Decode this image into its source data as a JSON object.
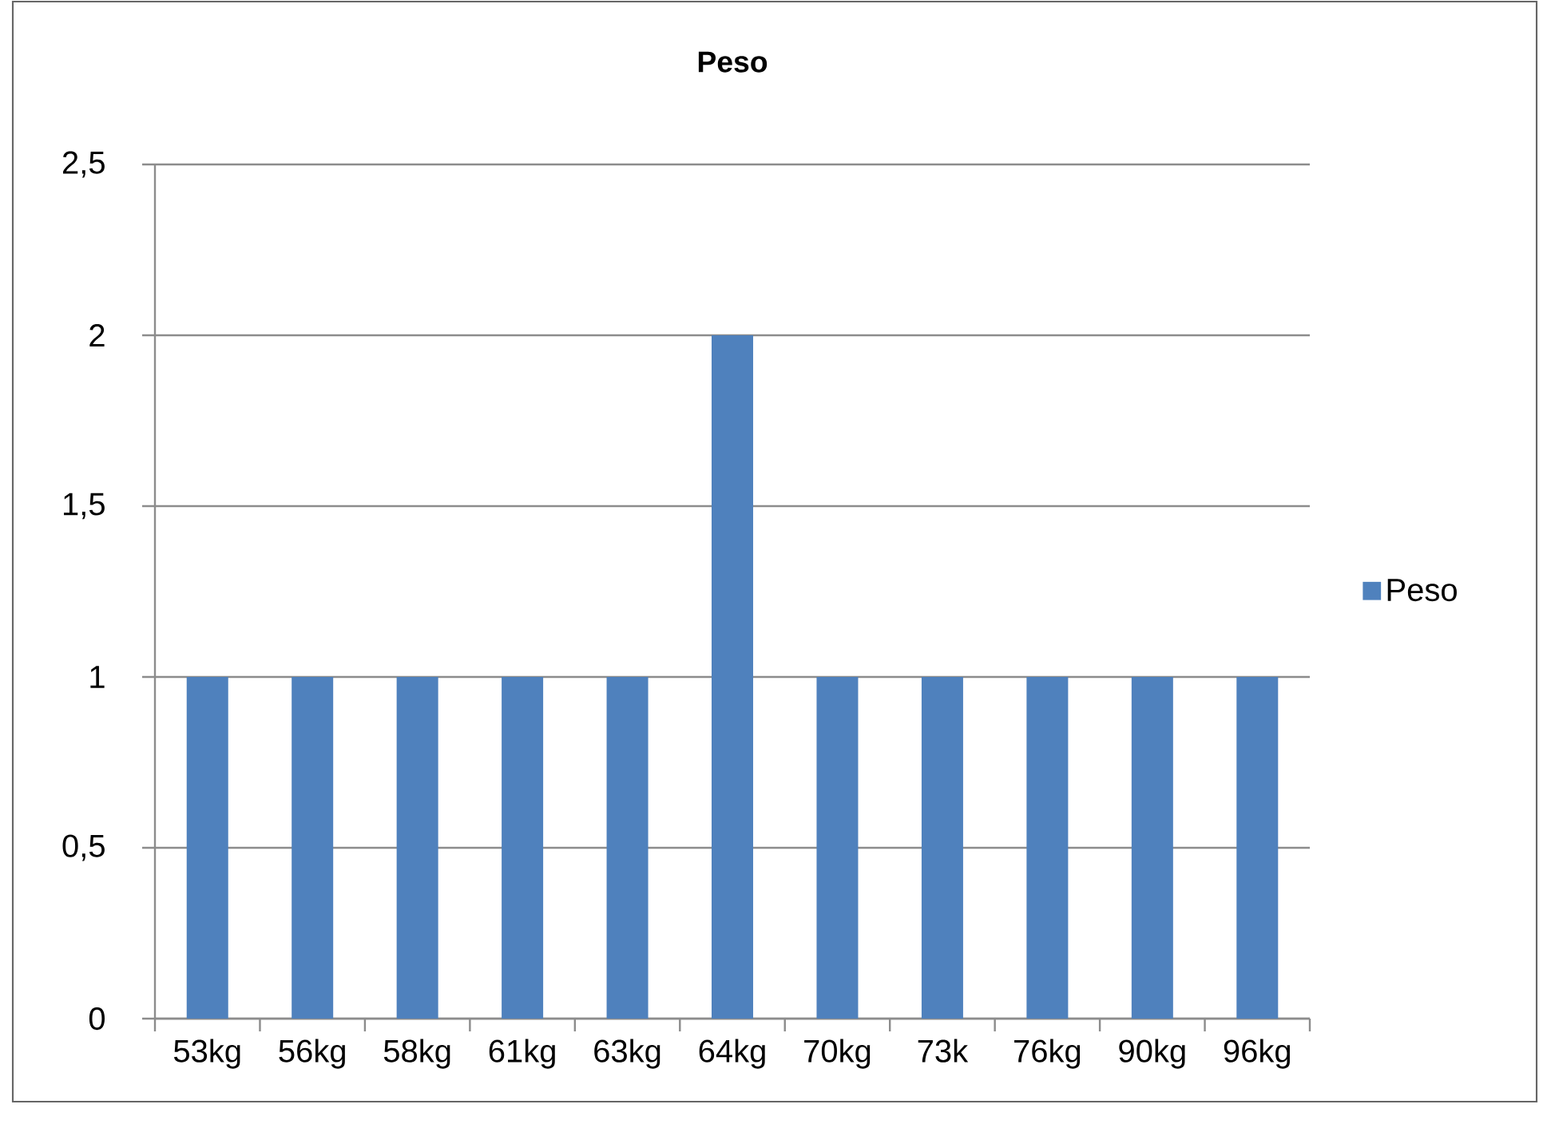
{
  "chart_data": {
    "type": "bar",
    "title": "Peso",
    "categories": [
      "53kg",
      "56kg",
      "58kg",
      "61kg",
      "63kg",
      "64kg",
      "70kg",
      "73k",
      "76kg",
      "90kg",
      "96kg"
    ],
    "series": [
      {
        "name": "Peso",
        "color": "#4f81bd",
        "values": [
          1,
          1,
          1,
          1,
          1,
          2,
          1,
          1,
          1,
          1,
          1
        ]
      }
    ],
    "ylim": [
      0,
      2.5
    ],
    "yticks": [
      0,
      {
        "value": 0.5,
        "label": "0,5"
      },
      1,
      {
        "value": 1.5,
        "label": "1,5"
      },
      2,
      {
        "value": 2.5,
        "label": "2,5"
      }
    ],
    "grid": "y",
    "legend": "right"
  }
}
